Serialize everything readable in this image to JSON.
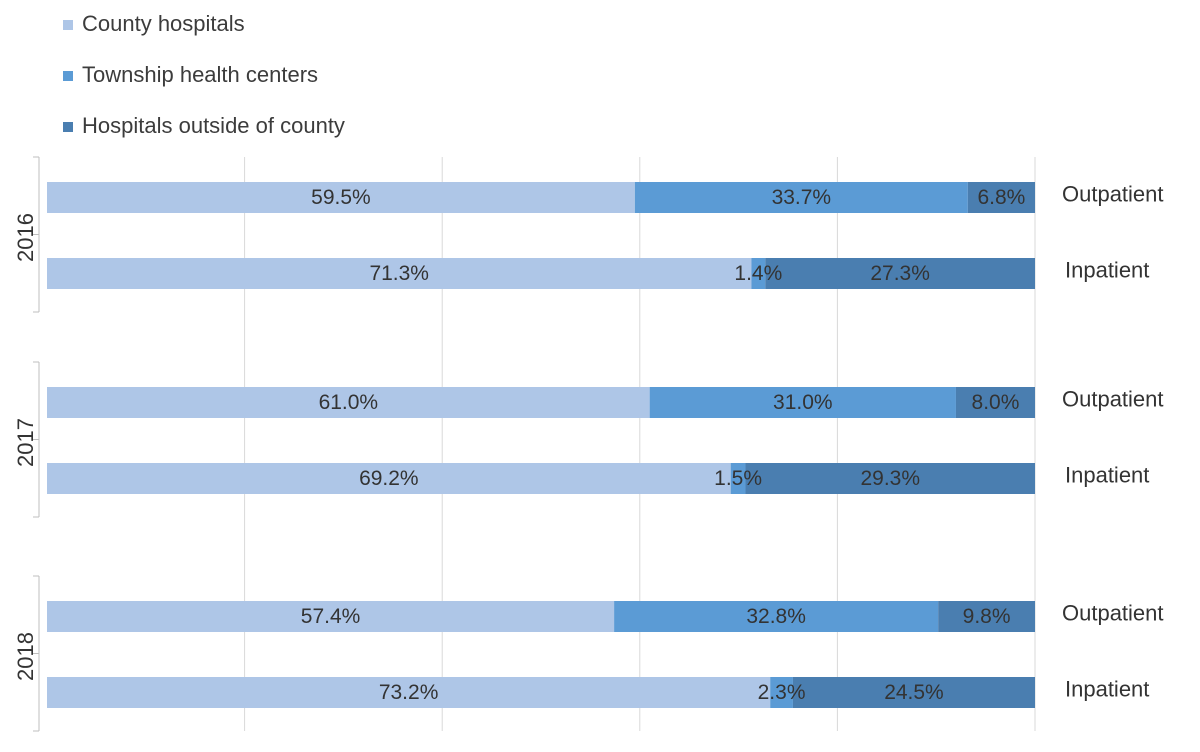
{
  "chart_data": {
    "type": "bar",
    "orientation": "horizontal",
    "stacked": true,
    "percent": true,
    "xlim": [
      0,
      100
    ],
    "grid": true,
    "legend_position": "top-left",
    "colors": [
      "#aec6e7",
      "#5b9bd5",
      "#4a7eb0"
    ],
    "legend": [
      "County hospitals",
      "Township health centers",
      "Hospitals outside of county"
    ],
    "groups": [
      {
        "year": "2016",
        "rows": [
          {
            "label": "Outpatient",
            "values": [
              59.5,
              33.7,
              6.8
            ],
            "value_labels": [
              "59.5%",
              "33.7%",
              "6.8%"
            ]
          },
          {
            "label": "Inpatient",
            "values": [
              71.3,
              1.4,
              27.3
            ],
            "value_labels": [
              "71.3%",
              "1.4%",
              "27.3%"
            ]
          }
        ]
      },
      {
        "year": "2017",
        "rows": [
          {
            "label": "Outpatient",
            "values": [
              61.0,
              31.0,
              8.0
            ],
            "value_labels": [
              "61.0%",
              "31.0%",
              "8.0%"
            ]
          },
          {
            "label": "Inpatient",
            "values": [
              69.2,
              1.5,
              29.3
            ],
            "value_labels": [
              "69.2%",
              "1.5%",
              "29.3%"
            ]
          }
        ]
      },
      {
        "year": "2018",
        "rows": [
          {
            "label": "Outpatient",
            "values": [
              57.4,
              32.8,
              9.8
            ],
            "value_labels": [
              "57.4%",
              "32.8%",
              "9.8%"
            ]
          },
          {
            "label": "Inpatient",
            "values": [
              73.2,
              2.3,
              24.5
            ],
            "value_labels": [
              "73.2%",
              "2.3%",
              "24.5%"
            ]
          }
        ]
      }
    ]
  }
}
